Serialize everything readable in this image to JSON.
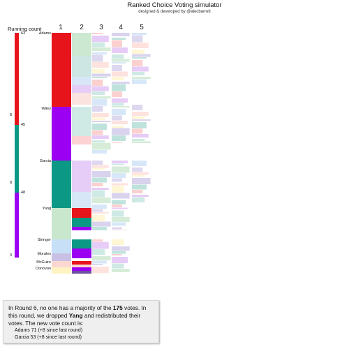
{
  "header": {
    "title": "Ranked Choice Voting simulator",
    "credit": "designed & developed by @alecbarrett"
  },
  "running_count": {
    "label": "Running count",
    "counts": [
      "63",
      "45",
      "48"
    ],
    "side_counts": [
      "8",
      "8",
      "3"
    ]
  },
  "rounds": [
    "1",
    "2",
    "3",
    "4",
    "5"
  ],
  "candidates": [
    {
      "name": "Adams",
      "color": "#e8141c"
    },
    {
      "name": "Wiley",
      "color": "#9b00f2"
    },
    {
      "name": "Garcia",
      "color": "#0b9884"
    },
    {
      "name": "Yang",
      "color": "#c8e7cc"
    },
    {
      "name": "Stringer",
      "color": "#c7dff7"
    },
    {
      "name": "Morales",
      "color": "#c9c0e6"
    },
    {
      "name": "McGuire",
      "color": "#fbd7d2"
    },
    {
      "name": "Donovan",
      "color": "#fff3c4"
    }
  ],
  "info": {
    "p1": "In Round 6, no one has a majority of the ",
    "votes": "175",
    "p2": " votes. In this round, we dropped ",
    "dropped": "Yang",
    "p3": " and redistributed their votes. The new vote count is:",
    "tally": [
      "Adams 71 (+8 since last round)",
      "Garcia 53 (+8 since last round)"
    ]
  }
}
